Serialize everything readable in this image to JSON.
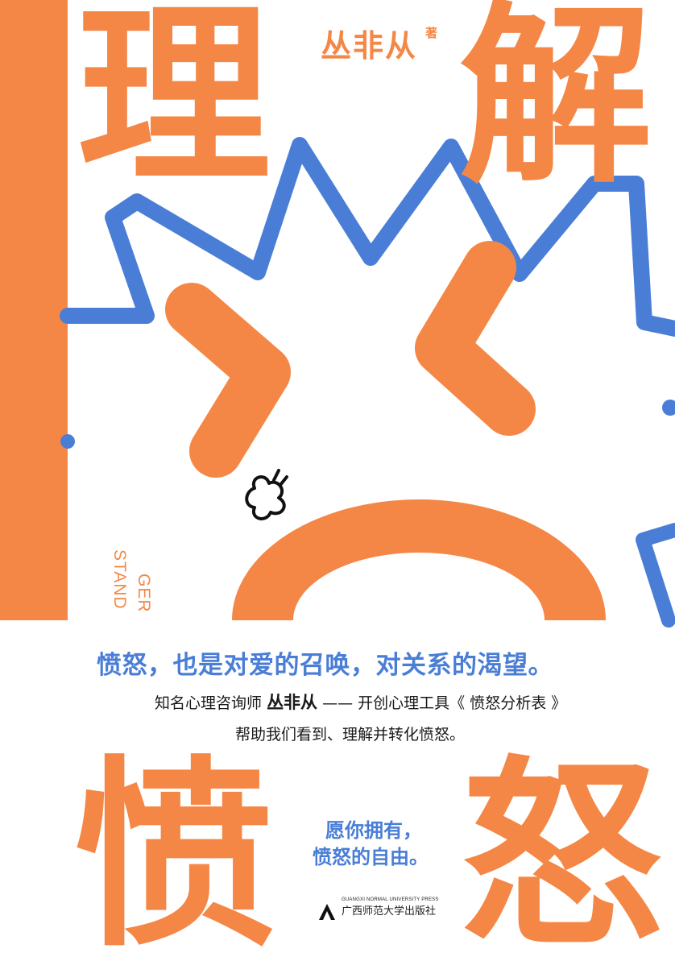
{
  "cover": {
    "title_char_1": "理",
    "title_char_2": "解",
    "title_char_3": "愤",
    "title_char_4": "怒",
    "author": "丛非从",
    "author_suffix": "著",
    "slogan": "愤怒，也是对爱的召唤，对关系的渴望。",
    "desc_line1_before": "知名心理咨询师",
    "desc_line1_name": "丛非从",
    "desc_line1_after": "—— 开创心理工具《 愤怒分析表 》",
    "desc_line2": "帮助我们看到、理解并转化愤怒。",
    "wish_line1": "愿你拥有，",
    "wish_line2": "愤怒的自由。",
    "vertical_text_1": "STAND",
    "vertical_text_2": "GER",
    "publisher_en": "GUANGXI NORMAL UNIVERSITY PRESS",
    "publisher_cn": "广西师范大学出版社"
  },
  "colors": {
    "orange": "#F58746",
    "blue": "#4A7ED6",
    "text": "#1a1a1a",
    "background": "#ffffff"
  },
  "icons": [
    "angry-face-illustration",
    "publisher-logo-icon"
  ]
}
